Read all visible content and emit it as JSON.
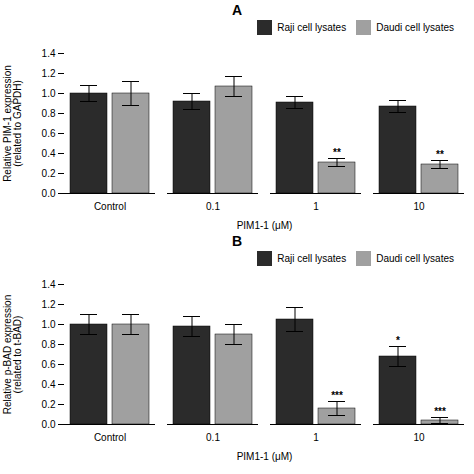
{
  "chart_data": [
    {
      "type": "bar",
      "title": "A",
      "ylabel": "Relative PIM-1 expression\n(related to GAPDH)",
      "xlabel": "PIM1-1 (μM)",
      "categories": [
        "Control",
        "0.1",
        "1",
        "10"
      ],
      "series": [
        {
          "name": "Raji cell lysates",
          "color": "#2b2b2b",
          "values": [
            1.0,
            0.92,
            0.91,
            0.87
          ],
          "errors": [
            0.08,
            0.08,
            0.06,
            0.06
          ]
        },
        {
          "name": "Daudi cell lysates",
          "color": "#a0a0a0",
          "values": [
            1.0,
            1.07,
            0.31,
            0.29
          ],
          "errors": [
            0.12,
            0.1,
            0.04,
            0.04
          ],
          "annotations": [
            null,
            null,
            "**",
            "**"
          ]
        }
      ],
      "ylim": [
        0,
        1.4
      ],
      "yticks": [
        {
          "value": 0,
          "label": "0.0"
        },
        0.2,
        0.4,
        0.6,
        0.8,
        {
          "value": 1.0,
          "label": "1.0"
        },
        1.2,
        1.4
      ],
      "legend": "upper right"
    },
    {
      "type": "bar",
      "title": "B",
      "ylabel": "Relative p-BAD expression\n(related to t-BAD)",
      "xlabel": "PIM1-1 (μM)",
      "categories": [
        "Control",
        "0.1",
        "1",
        "10"
      ],
      "series": [
        {
          "name": "Raji cell lysates",
          "color": "#2b2b2b",
          "values": [
            1.0,
            0.98,
            1.05,
            0.68
          ],
          "errors": [
            0.1,
            0.1,
            0.12,
            0.1
          ],
          "annotations": [
            null,
            null,
            null,
            "*"
          ]
        },
        {
          "name": "Daudi cell lysates",
          "color": "#a0a0a0",
          "values": [
            1.0,
            0.9,
            0.16,
            0.04
          ],
          "errors": [
            0.1,
            0.1,
            0.07,
            0.03
          ],
          "annotations": [
            null,
            null,
            "***",
            "***"
          ]
        }
      ],
      "ylim": [
        0,
        1.4
      ],
      "yticks": [
        {
          "value": 0,
          "label": "0.0"
        },
        0.2,
        0.4,
        0.6,
        0.8,
        {
          "value": 1.0,
          "label": "1.0"
        },
        1.2,
        1.4
      ],
      "legend": "upper right"
    }
  ]
}
